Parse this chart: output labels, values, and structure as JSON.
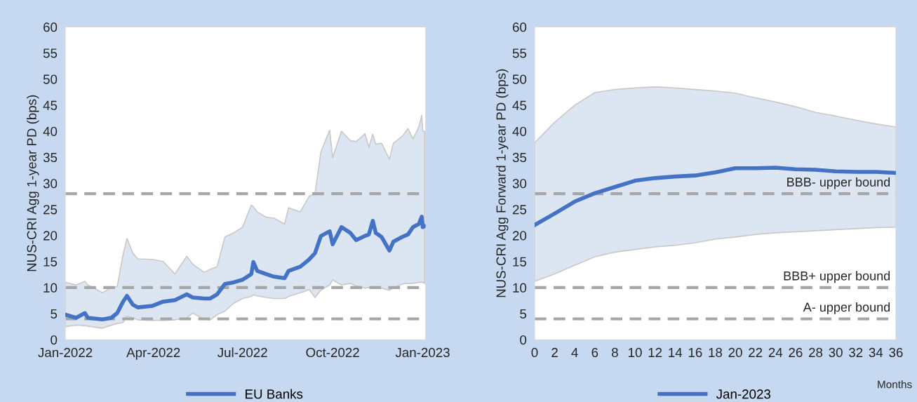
{
  "chart_data": [
    {
      "type": "line",
      "ylabel": "NUS-CRI Agg 1-year PD (bps)",
      "x": [
        "2022-01-01",
        "2022-01-12",
        "2022-01-21",
        "2022-01-24",
        "2022-02-08",
        "2022-02-17",
        "2022-02-23",
        "2022-03-01",
        "2022-03-05",
        "2022-03-11",
        "2022-03-16",
        "2022-03-31",
        "2022-04-11",
        "2022-04-23",
        "2022-05-05",
        "2022-05-11",
        "2022-05-23",
        "2022-05-29",
        "2022-06-05",
        "2022-06-13",
        "2022-06-22",
        "2022-07-01",
        "2022-07-10",
        "2022-07-12",
        "2022-07-16",
        "2022-07-25",
        "2022-08-02",
        "2022-08-13",
        "2022-08-17",
        "2022-08-29",
        "2022-09-07",
        "2022-09-13",
        "2022-09-19",
        "2022-09-28",
        "2022-10-01",
        "2022-10-10",
        "2022-10-19",
        "2022-10-25",
        "2022-11-03",
        "2022-11-07",
        "2022-11-11",
        "2022-11-14",
        "2022-11-20",
        "2022-11-28",
        "2022-12-02",
        "2022-12-11",
        "2022-12-17",
        "2022-12-22",
        "2022-12-28",
        "2022-12-31",
        "2023-01-01",
        "2023-01-03"
      ],
      "series": [
        {
          "name": "EU Banks",
          "color": "#4472c4",
          "values": [
            4.8,
            4.2,
            5.1,
            4.2,
            3.9,
            4.2,
            5.1,
            7.3,
            8.4,
            6.7,
            6.2,
            6.5,
            7.3,
            7.6,
            8.7,
            8.1,
            7.9,
            7.9,
            8.7,
            10.7,
            11.0,
            11.5,
            12.6,
            14.9,
            13.2,
            12.6,
            12.1,
            11.8,
            13.2,
            14.0,
            15.4,
            16.6,
            19.9,
            20.8,
            18.3,
            21.6,
            20.5,
            19.1,
            19.9,
            20.2,
            22.8,
            20.5,
            19.7,
            17.1,
            18.8,
            19.7,
            20.2,
            21.6,
            22.2,
            23.6,
            21.6,
            21.8
          ],
          "upper": [
            11.0,
            10.5,
            11.2,
            10.5,
            9.0,
            10.0,
            10.2,
            16.3,
            19.4,
            16.6,
            15.5,
            15.4,
            15.0,
            12.6,
            16.0,
            14.5,
            12.9,
            13.5,
            14.0,
            19.7,
            20.5,
            21.6,
            25.8,
            25.5,
            24.5,
            23.5,
            23.3,
            22.2,
            25.3,
            24.5,
            27.5,
            28.0,
            36.0,
            40.2,
            34.9,
            40.0,
            38.2,
            38.0,
            39.5,
            36.9,
            39.4,
            37.5,
            37.7,
            34.6,
            37.7,
            39.0,
            40.5,
            38.5,
            40.8,
            43.0,
            40.0,
            40.0
          ],
          "lower": [
            2.5,
            2.8,
            2.7,
            2.6,
            2.2,
            2.8,
            3.1,
            3.3,
            4.5,
            4.2,
            3.8,
            3.7,
            3.7,
            3.8,
            4.2,
            5.1,
            3.9,
            3.8,
            4.8,
            5.5,
            7.0,
            7.9,
            8.3,
            8.6,
            8.4,
            8.1,
            7.9,
            7.9,
            8.3,
            9.0,
            9.6,
            8.1,
            9.5,
            10.5,
            11.5,
            10.5,
            10.8,
            10.3,
            9.9,
            10.0,
            10.2,
            10.1,
            9.9,
            9.5,
            9.9,
            10.7,
            10.8,
            10.8,
            11.0,
            11.0,
            11.0,
            10.8
          ]
        }
      ],
      "xlim": [
        "2022-01-01",
        "2023-01-04"
      ],
      "xticks": [
        {
          "value": "2022-01-01",
          "label": "Jan-2022"
        },
        {
          "value": "2022-04-01",
          "label": "Apr-2022"
        },
        {
          "value": "2022-07-01",
          "label": "Jul-2022"
        },
        {
          "value": "2022-10-01",
          "label": "Oct-2022"
        },
        {
          "value": "2023-01-01",
          "label": "Jan-2023"
        }
      ],
      "ylim": [
        0,
        60
      ],
      "yticks": [
        0,
        5,
        10,
        15,
        20,
        25,
        30,
        35,
        40,
        45,
        50,
        55,
        60
      ],
      "ref_lines": [
        {
          "axis": "y",
          "value": 28,
          "color": "#a6a6a6",
          "line_style": "dashed"
        },
        {
          "axis": "y",
          "value": 10,
          "color": "#a6a6a6",
          "line_style": "dashed"
        },
        {
          "axis": "y",
          "value": 4,
          "color": "#a6a6a6",
          "line_style": "dashed"
        }
      ],
      "legend": "bottom",
      "grid": false
    },
    {
      "type": "line",
      "ylabel": "NUS-CRI Agg Forward 1-year PD (bps)",
      "xlabel": "Months",
      "x": [
        0,
        2,
        4,
        6,
        8,
        10,
        12,
        14,
        16,
        18,
        20,
        22,
        24,
        26,
        28,
        30,
        32,
        34,
        36
      ],
      "series": [
        {
          "name": "Jan-2023",
          "color": "#4472c4",
          "values": [
            22.0,
            24.2,
            26.5,
            28.1,
            29.3,
            30.5,
            31.0,
            31.3,
            31.5,
            32.1,
            32.9,
            32.9,
            33.0,
            32.7,
            32.6,
            32.3,
            32.2,
            32.2,
            32.0
          ],
          "upper": [
            37.8,
            41.7,
            45.0,
            47.4,
            48.0,
            48.3,
            48.5,
            48.3,
            48.0,
            47.7,
            47.3,
            46.4,
            45.6,
            44.7,
            43.6,
            42.9,
            42.1,
            41.4,
            40.8
          ],
          "lower": [
            11.2,
            12.6,
            14.3,
            15.9,
            16.8,
            17.3,
            17.8,
            18.1,
            18.6,
            19.3,
            19.7,
            20.2,
            20.5,
            20.7,
            20.9,
            21.1,
            21.3,
            21.5,
            21.6
          ]
        }
      ],
      "xlim": [
        0,
        36
      ],
      "xticks": [
        0,
        2,
        4,
        6,
        8,
        10,
        12,
        14,
        16,
        18,
        20,
        22,
        24,
        26,
        28,
        30,
        32,
        34,
        36
      ],
      "ylim": [
        0,
        60
      ],
      "yticks": [
        0,
        5,
        10,
        15,
        20,
        25,
        30,
        35,
        40,
        45,
        50,
        55,
        60
      ],
      "ref_lines": [
        {
          "axis": "y",
          "value": 28,
          "label": "BBB- upper bound",
          "color": "#a6a6a6",
          "line_style": "dashed"
        },
        {
          "axis": "y",
          "value": 10,
          "label": "BBB+ upper bound",
          "color": "#a6a6a6",
          "line_style": "dashed"
        },
        {
          "axis": "y",
          "value": 4,
          "label": "A- upper bound",
          "color": "#a6a6a6",
          "line_style": "dashed"
        }
      ],
      "legend": "bottom",
      "grid": false
    }
  ]
}
